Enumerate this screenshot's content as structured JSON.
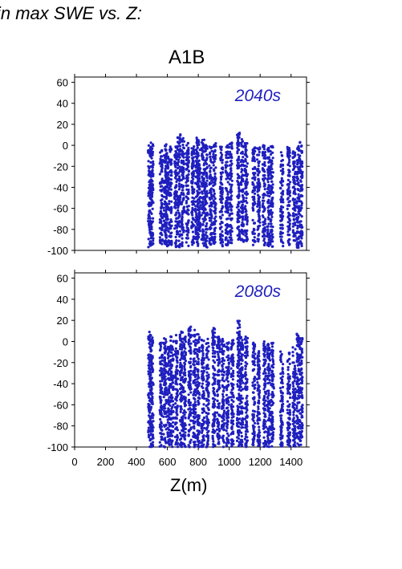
{
  "page": {
    "title": "in max SWE vs. Z:",
    "figure_title": "A1B",
    "x_axis_label": "Z(m)"
  },
  "colors": {
    "points": "#1f1fbf",
    "axis": "#000000",
    "label": "#1f1fbf"
  },
  "chart_data": [
    {
      "type": "scatter",
      "annotation": "2040s",
      "xlim": [
        0,
        1500
      ],
      "ylim": [
        -100,
        65
      ],
      "x_ticks": [
        "0",
        "200",
        "400",
        "600",
        "800",
        "1000",
        "1200",
        "1400"
      ],
      "y_ticks": [
        "60",
        "40",
        "20",
        "0",
        "-20",
        "-40",
        "-60",
        "-80",
        "-100"
      ],
      "x_tick_values": [
        0,
        200,
        400,
        600,
        800,
        1000,
        1200,
        1400
      ],
      "y_tick_values": [
        60,
        40,
        20,
        0,
        -20,
        -40,
        -60,
        -80,
        -100
      ],
      "show_x_tick_labels": false,
      "grid": false,
      "columns": [
        {
          "x": 485,
          "ymin": -97,
          "ymax": 3
        },
        {
          "x": 500,
          "ymin": -96,
          "ymax": 2
        },
        {
          "x": 560,
          "ymin": -95,
          "ymax": -2
        },
        {
          "x": 585,
          "ymin": -95,
          "ymax": 1
        },
        {
          "x": 600,
          "ymin": -96,
          "ymax": -5
        },
        {
          "x": 620,
          "ymin": -96,
          "ymax": 0
        },
        {
          "x": 655,
          "ymin": -97,
          "ymax": 0
        },
        {
          "x": 675,
          "ymin": -97,
          "ymax": 11
        },
        {
          "x": 700,
          "ymin": -97,
          "ymax": 8
        },
        {
          "x": 730,
          "ymin": -96,
          "ymax": 4
        },
        {
          "x": 765,
          "ymin": -95,
          "ymax": 3
        },
        {
          "x": 790,
          "ymin": -97,
          "ymax": 8
        },
        {
          "x": 805,
          "ymin": -96,
          "ymax": 5
        },
        {
          "x": 830,
          "ymin": -96,
          "ymax": 6
        },
        {
          "x": 850,
          "ymin": -97,
          "ymax": 1
        },
        {
          "x": 880,
          "ymin": -95,
          "ymax": -1
        },
        {
          "x": 905,
          "ymin": -95,
          "ymax": 4
        },
        {
          "x": 950,
          "ymin": -96,
          "ymax": 1
        },
        {
          "x": 985,
          "ymin": -95,
          "ymax": 0
        },
        {
          "x": 1010,
          "ymin": -95,
          "ymax": 3
        },
        {
          "x": 1060,
          "ymin": -92,
          "ymax": 14
        },
        {
          "x": 1085,
          "ymin": -92,
          "ymax": 6
        },
        {
          "x": 1110,
          "ymin": -92,
          "ymax": 2
        },
        {
          "x": 1160,
          "ymin": -96,
          "ymax": 0
        },
        {
          "x": 1190,
          "ymin": -94,
          "ymax": -2
        },
        {
          "x": 1225,
          "ymin": -95,
          "ymax": 0
        },
        {
          "x": 1255,
          "ymin": -96,
          "ymax": -1
        },
        {
          "x": 1275,
          "ymin": -97,
          "ymax": 0
        },
        {
          "x": 1340,
          "ymin": -96,
          "ymax": -5
        },
        {
          "x": 1385,
          "ymin": -97,
          "ymax": 0
        },
        {
          "x": 1420,
          "ymin": -97,
          "ymax": -5
        },
        {
          "x": 1445,
          "ymin": -98,
          "ymax": 1
        },
        {
          "x": 1465,
          "ymin": -97,
          "ymax": 3
        }
      ]
    },
    {
      "type": "scatter",
      "annotation": "2080s",
      "xlim": [
        0,
        1500
      ],
      "ylim": [
        -100,
        65
      ],
      "x_ticks": [
        "0",
        "200",
        "400",
        "600",
        "800",
        "1000",
        "1200",
        "1400"
      ],
      "y_ticks": [
        "60",
        "40",
        "20",
        "0",
        "-20",
        "-40",
        "-60",
        "-80",
        "-100"
      ],
      "x_tick_values": [
        0,
        200,
        400,
        600,
        800,
        1000,
        1200,
        1400
      ],
      "y_tick_values": [
        60,
        40,
        20,
        0,
        -20,
        -40,
        -60,
        -80,
        -100
      ],
      "show_x_tick_labels": true,
      "grid": false,
      "columns": [
        {
          "x": 485,
          "ymin": -100,
          "ymax": 10
        },
        {
          "x": 500,
          "ymin": -100,
          "ymax": 5
        },
        {
          "x": 560,
          "ymin": -100,
          "ymax": 0
        },
        {
          "x": 585,
          "ymin": -100,
          "ymax": 8
        },
        {
          "x": 610,
          "ymin": -100,
          "ymax": -5
        },
        {
          "x": 630,
          "ymin": -100,
          "ymax": 5
        },
        {
          "x": 660,
          "ymin": -100,
          "ymax": 8
        },
        {
          "x": 690,
          "ymin": -100,
          "ymax": 10
        },
        {
          "x": 710,
          "ymin": -100,
          "ymax": 5
        },
        {
          "x": 745,
          "ymin": -100,
          "ymax": 14
        },
        {
          "x": 775,
          "ymin": -100,
          "ymax": 12
        },
        {
          "x": 800,
          "ymin": -100,
          "ymax": 8
        },
        {
          "x": 830,
          "ymin": -100,
          "ymax": 5
        },
        {
          "x": 860,
          "ymin": -100,
          "ymax": 3
        },
        {
          "x": 900,
          "ymin": -100,
          "ymax": 14
        },
        {
          "x": 930,
          "ymin": -100,
          "ymax": 5
        },
        {
          "x": 960,
          "ymin": -100,
          "ymax": 3
        },
        {
          "x": 990,
          "ymin": -100,
          "ymax": 0
        },
        {
          "x": 1020,
          "ymin": -100,
          "ymax": 2
        },
        {
          "x": 1060,
          "ymin": -100,
          "ymax": 20
        },
        {
          "x": 1080,
          "ymin": -100,
          "ymax": 5
        },
        {
          "x": 1110,
          "ymin": -100,
          "ymax": 8
        },
        {
          "x": 1160,
          "ymin": -100,
          "ymax": 0
        },
        {
          "x": 1190,
          "ymin": -100,
          "ymax": -5
        },
        {
          "x": 1230,
          "ymin": -100,
          "ymax": 0
        },
        {
          "x": 1255,
          "ymin": -100,
          "ymax": -2
        },
        {
          "x": 1280,
          "ymin": -100,
          "ymax": 0
        },
        {
          "x": 1340,
          "ymin": -100,
          "ymax": -8
        },
        {
          "x": 1385,
          "ymin": -100,
          "ymax": -10
        },
        {
          "x": 1420,
          "ymin": -100,
          "ymax": -5
        },
        {
          "x": 1445,
          "ymin": -100,
          "ymax": 8
        },
        {
          "x": 1465,
          "ymin": -100,
          "ymax": 5
        }
      ]
    }
  ]
}
